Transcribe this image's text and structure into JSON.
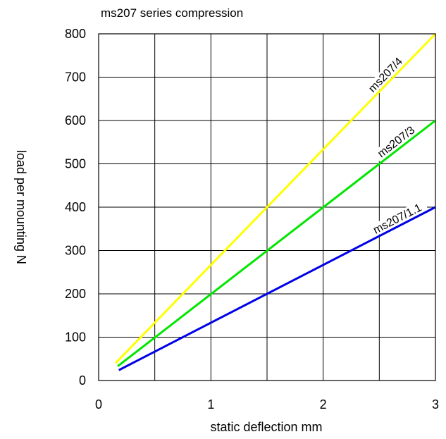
{
  "chart_data": {
    "type": "line",
    "title": "ms207 series compression",
    "xlabel": "static deflection mm",
    "ylabel": "load per mounting N",
    "xlim": [
      0,
      3
    ],
    "ylim": [
      0,
      800
    ],
    "x_ticks": [
      "0",
      "1",
      "2",
      "3"
    ],
    "y_ticks": [
      "0",
      "100",
      "200",
      "300",
      "400",
      "500",
      "600",
      "700",
      "800"
    ],
    "x_grid_step": 0.5,
    "y_grid_step": 100,
    "grid": true,
    "series": [
      {
        "name": "ms207/4",
        "color": "#ffff00",
        "x": [
          0.15,
          3.0
        ],
        "y": [
          40,
          800
        ]
      },
      {
        "name": "ms207/3",
        "color": "#00e600",
        "x": [
          0.17,
          3.0
        ],
        "y": [
          33,
          600
        ]
      },
      {
        "name": "ms207/1.1",
        "color": "#0000e6",
        "x": [
          0.18,
          3.0
        ],
        "y": [
          24,
          400
        ]
      }
    ]
  }
}
